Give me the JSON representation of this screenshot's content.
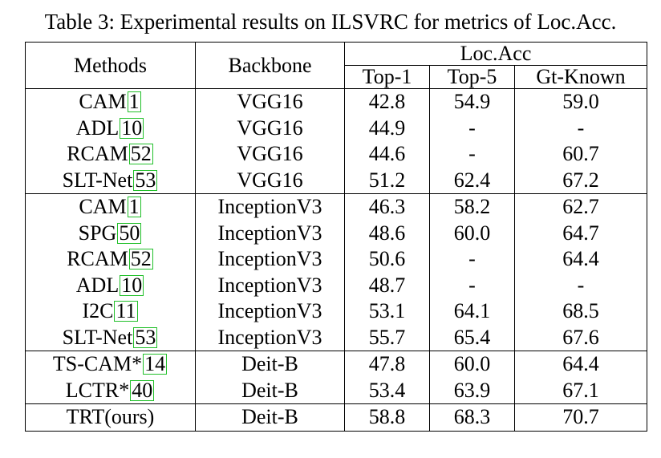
{
  "caption": "Table 3: Experimental results on ILSVRC for metrics of Loc.Acc.",
  "header": {
    "methods": "Methods",
    "backbone": "Backbone",
    "group": "Loc.Acc",
    "top1": "Top-1",
    "top5": "Top-5",
    "gt_known": "Gt-Known"
  },
  "groups": [
    {
      "rows": [
        {
          "method": "CAM",
          "cite": "1",
          "backbone": "VGG16",
          "top1": "42.8",
          "top5": "54.9",
          "gt": "59.0"
        },
        {
          "method": "ADL",
          "cite": "10",
          "backbone": "VGG16",
          "top1": "44.9",
          "top5": "-",
          "gt": "-"
        },
        {
          "method": "RCAM",
          "cite": "52",
          "backbone": "VGG16",
          "top1": "44.6",
          "top5": "-",
          "gt": "60.7"
        },
        {
          "method": "SLT-Net",
          "cite": "53",
          "backbone": "VGG16",
          "top1": "51.2",
          "top5": "62.4",
          "gt": "67.2"
        }
      ]
    },
    {
      "rows": [
        {
          "method": "CAM",
          "cite": "1",
          "backbone": "InceptionV3",
          "top1": "46.3",
          "top5": "58.2",
          "gt": "62.7"
        },
        {
          "method": "SPG",
          "cite": "50",
          "backbone": "InceptionV3",
          "top1": "48.6",
          "top5": "60.0",
          "gt": "64.7"
        },
        {
          "method": "RCAM",
          "cite": "52",
          "backbone": "InceptionV3",
          "top1": "50.6",
          "top5": "-",
          "gt": "64.4"
        },
        {
          "method": "ADL",
          "cite": "10",
          "backbone": "InceptionV3",
          "top1": "48.7",
          "top5": "-",
          "gt": "-"
        },
        {
          "method": "I2C",
          "cite": "11",
          "backbone": "InceptionV3",
          "top1": "53.1",
          "top5": "64.1",
          "gt": "68.5"
        },
        {
          "method": "SLT-Net",
          "cite": "53",
          "backbone": "InceptionV3",
          "top1": "55.7",
          "top5": "65.4",
          "gt": "67.6"
        }
      ]
    },
    {
      "rows": [
        {
          "method": "TS-CAM*",
          "cite": "14",
          "backbone": "Deit-B",
          "top1": "47.8",
          "top5": "60.0",
          "gt": "64.4"
        },
        {
          "method": "LCTR*",
          "cite": "40",
          "backbone": "Deit-B",
          "top1": "53.4",
          "top5": "63.9",
          "gt": "67.1"
        }
      ]
    },
    {
      "rows": [
        {
          "method": "TRT(ours)",
          "cite": "",
          "backbone": "Deit-B",
          "top1": "58.8",
          "top5": "68.3",
          "gt": "70.7"
        }
      ]
    }
  ]
}
